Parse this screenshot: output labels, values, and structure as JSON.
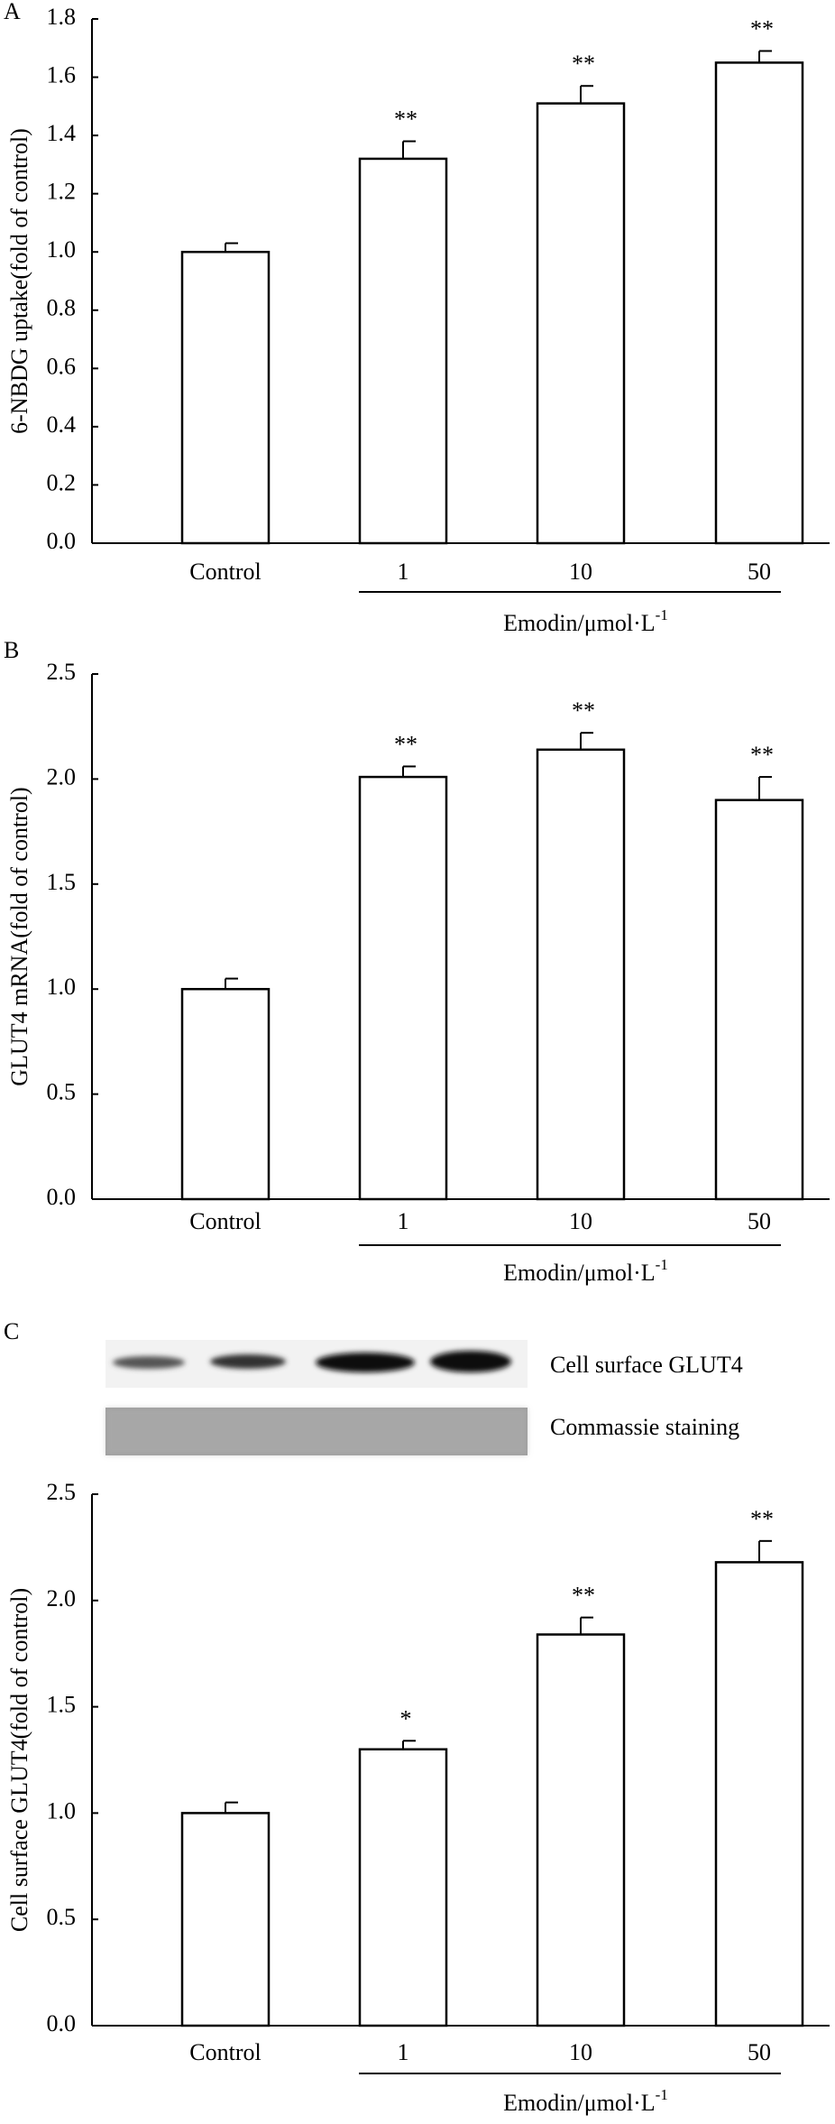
{
  "chart_data": [
    {
      "type": "bar",
      "panel": "A",
      "ylabel": "6-NBDG uptake(fold of control)",
      "categories": [
        "Control",
        "1",
        "10",
        "50"
      ],
      "values": [
        1.0,
        1.32,
        1.51,
        1.65
      ],
      "errors": [
        0.03,
        0.06,
        0.06,
        0.04
      ],
      "annotations": [
        null,
        "**",
        "**",
        "**"
      ],
      "group_label": "Emodin/μmol·L",
      "group_label_sup": "-1",
      "color": "#ffffff",
      "ylim": [
        0,
        1.8
      ],
      "yticks": [
        {
          "value": 0,
          "label": "0.0"
        },
        {
          "value": 0.2,
          "label": "0.2"
        },
        {
          "value": 0.4,
          "label": "0.4"
        },
        {
          "value": 0.6,
          "label": "0.6"
        },
        {
          "value": 0.8,
          "label": "0.8"
        },
        {
          "value": 1.0,
          "label": "1.0"
        },
        {
          "value": 1.2,
          "label": "1.2"
        },
        {
          "value": 1.4,
          "label": "1.4"
        },
        {
          "value": 1.6,
          "label": "1.6"
        },
        {
          "value": 1.8,
          "label": "1.8"
        }
      ]
    },
    {
      "type": "bar",
      "panel": "B",
      "ylabel": "GLUT4 mRNA(fold of control)",
      "categories": [
        "Control",
        "1",
        "10",
        "50"
      ],
      "values": [
        1.0,
        2.01,
        2.14,
        1.9
      ],
      "errors": [
        0.05,
        0.05,
        0.08,
        0.11
      ],
      "annotations": [
        null,
        "**",
        "**",
        "**"
      ],
      "group_label": "Emodin/μmol·L",
      "group_label_sup": "-1",
      "color": "#ffffff",
      "ylim": [
        0,
        2.5
      ],
      "yticks": [
        {
          "value": 0,
          "label": "0.0"
        },
        {
          "value": 0.5,
          "label": "0.5"
        },
        {
          "value": 1.0,
          "label": "1.0"
        },
        {
          "value": 1.5,
          "label": "1.5"
        },
        {
          "value": 2.0,
          "label": "2.0"
        },
        {
          "value": 2.5,
          "label": "2.5"
        }
      ]
    },
    {
      "type": "bar",
      "panel": "C",
      "ylabel": "Cell surface GLUT4(fold of control)",
      "blot_labels": [
        "Cell surface GLUT4",
        "Commassie staining"
      ],
      "categories": [
        "Control",
        "1",
        "10",
        "50"
      ],
      "values": [
        1.0,
        1.3,
        1.84,
        2.18
      ],
      "errors": [
        0.05,
        0.04,
        0.08,
        0.1
      ],
      "annotations": [
        null,
        "*",
        "**",
        "**"
      ],
      "group_label": "Emodin/μmol·L",
      "group_label_sup": "-1",
      "color": "#ffffff",
      "ylim": [
        0,
        2.5
      ],
      "yticks": [
        {
          "value": 0,
          "label": "0.0"
        },
        {
          "value": 0.5,
          "label": "0.5"
        },
        {
          "value": 1.0,
          "label": "1.0"
        },
        {
          "value": 1.5,
          "label": "1.5"
        },
        {
          "value": 2.0,
          "label": "2.0"
        },
        {
          "value": 2.5,
          "label": "2.5"
        }
      ]
    }
  ]
}
